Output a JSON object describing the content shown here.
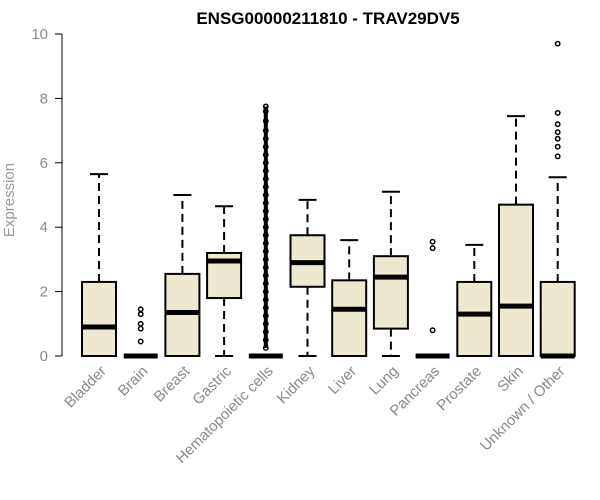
{
  "chart_data": {
    "type": "boxplot",
    "title": "ENSG00000211810 - TRAV29DV5",
    "xlabel": "",
    "ylabel": "Expression",
    "ylim": [
      0,
      10
    ],
    "yticks": [
      0,
      2,
      4,
      6,
      8,
      10
    ],
    "grid": false,
    "legend": "none",
    "box_color": "#eee8d0",
    "categories": [
      "Bladder",
      "Brain",
      "Breast",
      "Gastric",
      "Hematopoietic cells",
      "Kidney",
      "Liver",
      "Lung",
      "Pancreas",
      "Prostate",
      "Skin",
      "Unknown / Other"
    ],
    "boxes": [
      {
        "category": "Bladder",
        "min": 0,
        "q1": 0,
        "median": 0.9,
        "q3": 2.3,
        "max": 5.65,
        "outliers": []
      },
      {
        "category": "Brain",
        "min": 0,
        "q1": 0,
        "median": 0,
        "q3": 0,
        "max": 0,
        "outliers": [
          0.45,
          0.85,
          1.0,
          1.3,
          1.45
        ]
      },
      {
        "category": "Breast",
        "min": 0,
        "q1": 0,
        "median": 1.35,
        "q3": 2.55,
        "max": 5.0,
        "outliers": []
      },
      {
        "category": "Gastric",
        "min": 0,
        "q1": 1.8,
        "median": 2.95,
        "q3": 3.2,
        "max": 4.65,
        "outliers": []
      },
      {
        "category": "Hematopoietic cells",
        "min": 0,
        "q1": 0,
        "median": 0,
        "q3": 0,
        "max": 0,
        "outliers": [
          0.25,
          0.5,
          0.75,
          1.0,
          1.25,
          1.5,
          1.75,
          2.0,
          2.25,
          2.5,
          2.75,
          3.0,
          3.25,
          3.5,
          3.75,
          4.0,
          4.25,
          4.5,
          4.75,
          5.0,
          5.25,
          5.5,
          5.75,
          6.0,
          6.25,
          6.5,
          6.75,
          7.0,
          7.3,
          7.6,
          7.75
        ]
      },
      {
        "category": "Kidney",
        "min": 0,
        "q1": 2.15,
        "median": 2.9,
        "q3": 3.75,
        "max": 4.85,
        "outliers": []
      },
      {
        "category": "Liver",
        "min": 0,
        "q1": 0,
        "median": 1.45,
        "q3": 2.35,
        "max": 3.6,
        "outliers": []
      },
      {
        "category": "Lung",
        "min": 0,
        "q1": 0.85,
        "median": 2.45,
        "q3": 3.1,
        "max": 5.1,
        "outliers": []
      },
      {
        "category": "Pancreas",
        "min": 0,
        "q1": 0,
        "median": 0,
        "q3": 0,
        "max": 0,
        "outliers": [
          0.8,
          3.35,
          3.55
        ]
      },
      {
        "category": "Prostate",
        "min": 0,
        "q1": 0,
        "median": 1.3,
        "q3": 2.3,
        "max": 3.45,
        "outliers": []
      },
      {
        "category": "Skin",
        "min": 0,
        "q1": 0,
        "median": 1.55,
        "q3": 4.7,
        "max": 7.45,
        "outliers": []
      },
      {
        "category": "Unknown / Other",
        "min": 0,
        "q1": 0,
        "median": 0,
        "q3": 2.3,
        "max": 5.55,
        "outliers": [
          6.2,
          6.5,
          6.75,
          6.95,
          7.2,
          7.55,
          9.7
        ]
      }
    ]
  }
}
